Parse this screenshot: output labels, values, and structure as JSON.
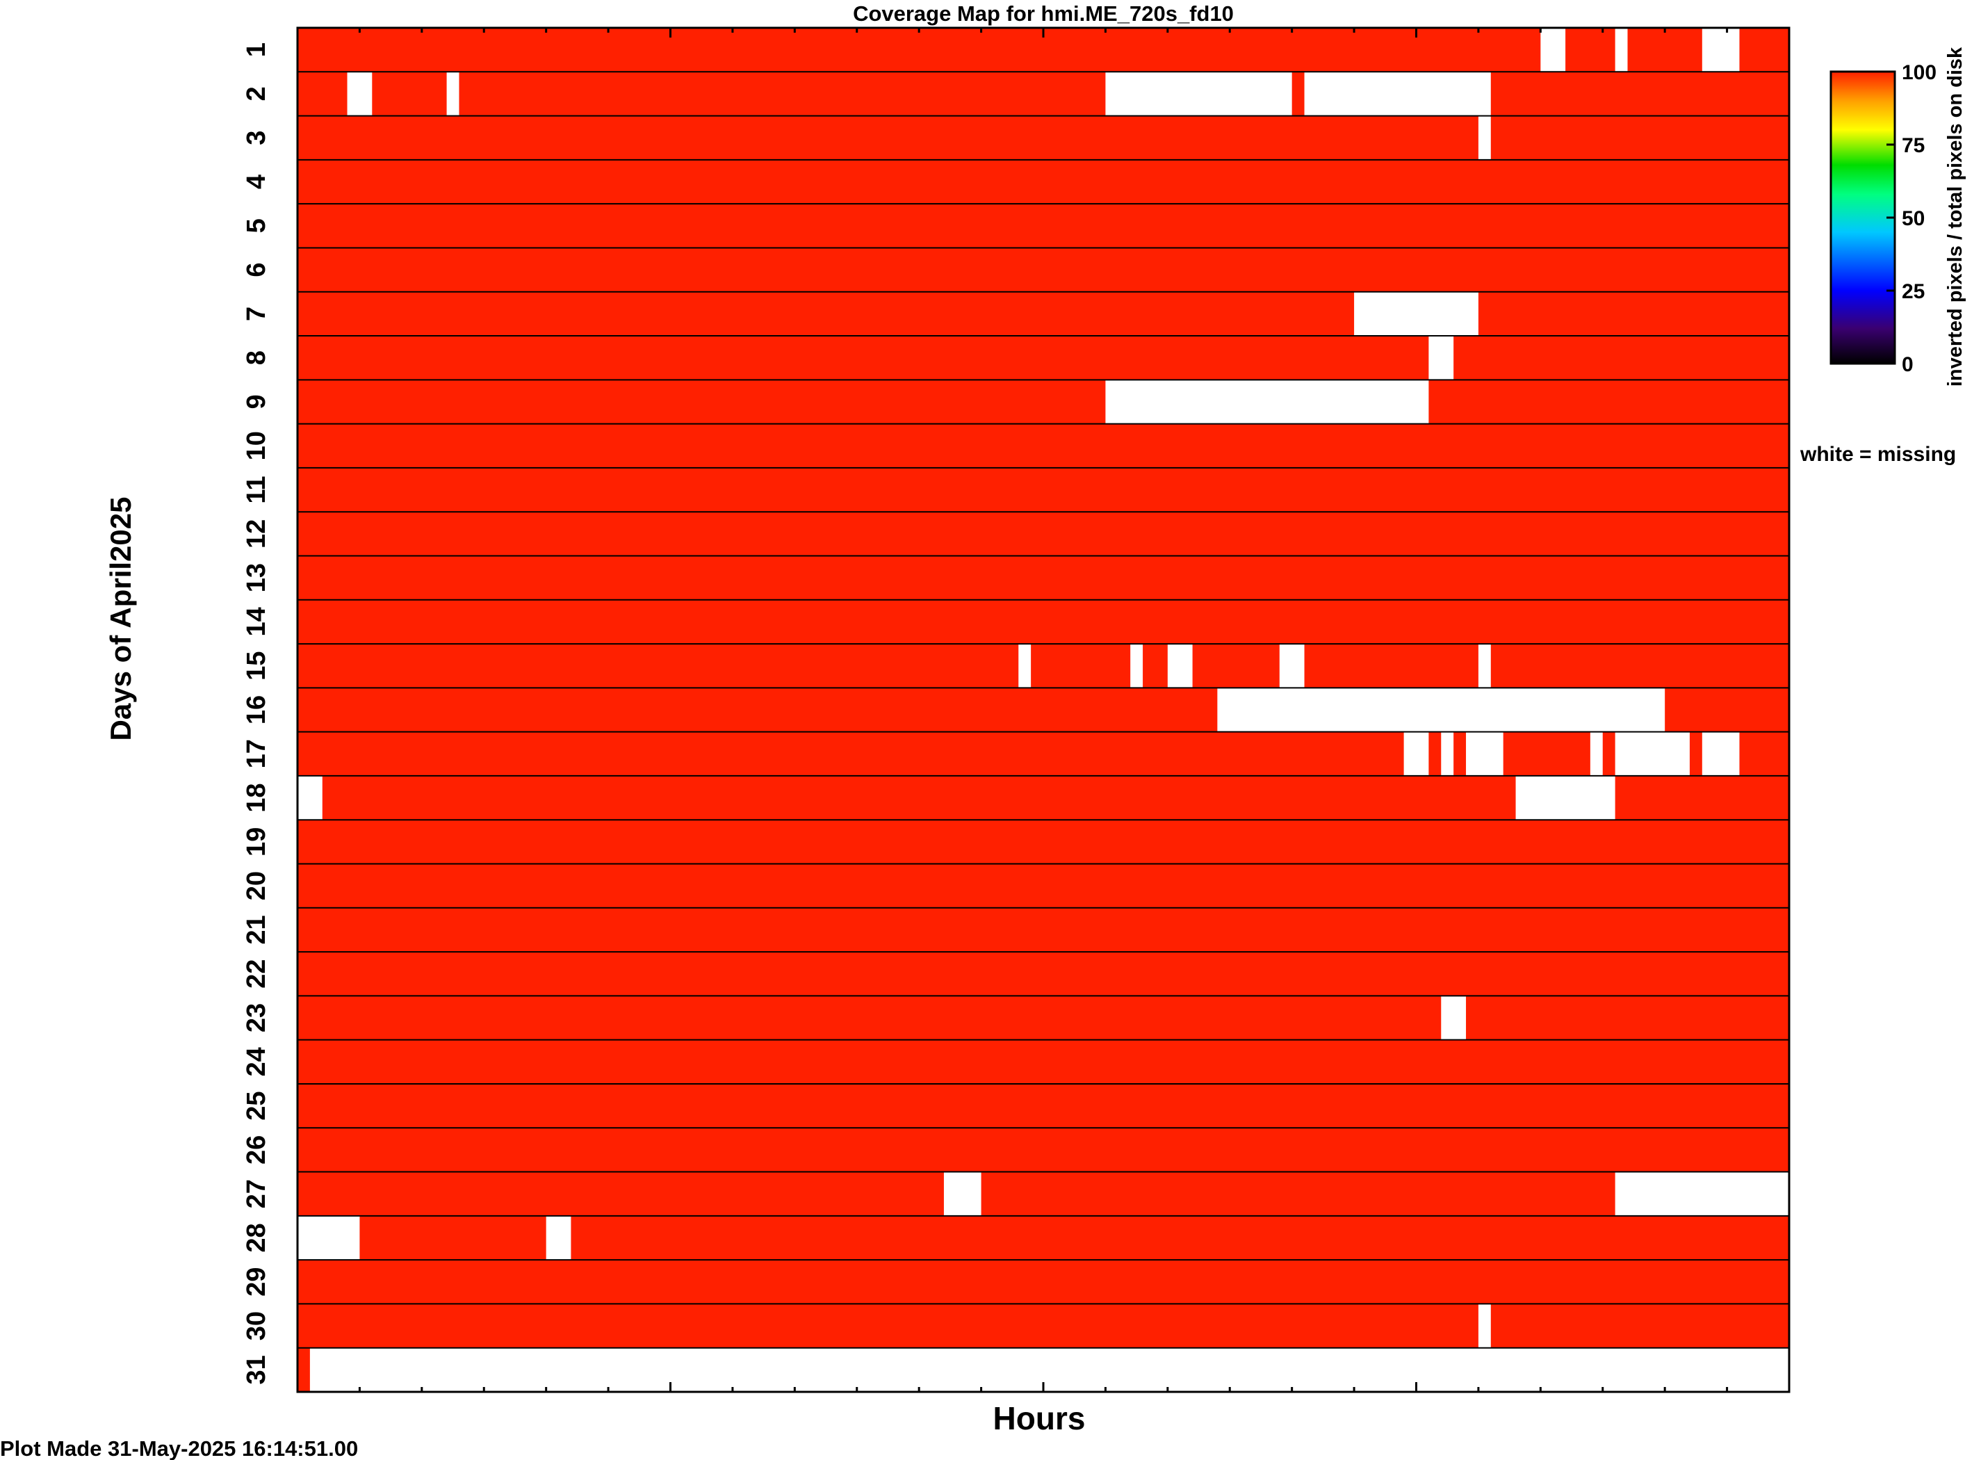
{
  "chart_data": {
    "type": "heatmap",
    "title": "Coverage Map for hmi.ME_720s_fd10",
    "xlabel": "Hours",
    "ylabel": "Days of April2025",
    "xlim": [
      0,
      24
    ],
    "days": 31,
    "day_labels": [
      "1",
      "2",
      "3",
      "4",
      "5",
      "6",
      "7",
      "8",
      "9",
      "10",
      "11",
      "12",
      "13",
      "14",
      "15",
      "16",
      "17",
      "18",
      "19",
      "20",
      "21",
      "22",
      "23",
      "24",
      "25",
      "26",
      "27",
      "28",
      "29",
      "30",
      "31"
    ],
    "colorbar": {
      "label": "inverted pixels / total pixels on disk",
      "ticks": [
        "0",
        "25",
        "50",
        "75",
        "100"
      ],
      "range": [
        0,
        100
      ],
      "colors": [
        "#000000",
        "#3a0070",
        "#0000ff",
        "#00c8ff",
        "#00ff80",
        "#00dd00",
        "#ffff00",
        "#ffa000",
        "#ff2000"
      ],
      "note": "white = missing"
    },
    "value_color": "#ff2000",
    "missing_color": "#ffffff",
    "coverage_value": 100,
    "missing_hours": [
      {
        "day": 1,
        "spans": [
          [
            20.0,
            20.4
          ],
          [
            21.2,
            21.4
          ],
          [
            22.6,
            23.2
          ]
        ]
      },
      {
        "day": 2,
        "spans": [
          [
            0.8,
            1.2
          ],
          [
            2.4,
            2.6
          ],
          [
            13.0,
            16.0
          ],
          [
            16.2,
            19.2
          ]
        ]
      },
      {
        "day": 3,
        "spans": [
          [
            19.0,
            19.2
          ]
        ]
      },
      {
        "day": 7,
        "spans": [
          [
            17.0,
            19.0
          ]
        ]
      },
      {
        "day": 8,
        "spans": [
          [
            18.2,
            18.6
          ]
        ]
      },
      {
        "day": 9,
        "spans": [
          [
            13.0,
            18.2
          ]
        ]
      },
      {
        "day": 15,
        "spans": [
          [
            11.6,
            11.8
          ],
          [
            13.4,
            13.6
          ],
          [
            14.0,
            14.4
          ],
          [
            15.8,
            16.2
          ],
          [
            19.0,
            19.2
          ]
        ]
      },
      {
        "day": 16,
        "spans": [
          [
            14.8,
            22.0
          ]
        ]
      },
      {
        "day": 17,
        "spans": [
          [
            17.8,
            18.2
          ],
          [
            18.4,
            18.6
          ],
          [
            18.8,
            19.4
          ],
          [
            20.8,
            21.0
          ],
          [
            21.2,
            22.4
          ],
          [
            22.6,
            23.2
          ]
        ]
      },
      {
        "day": 18,
        "spans": [
          [
            0.0,
            0.4
          ],
          [
            19.6,
            21.2
          ]
        ]
      },
      {
        "day": 23,
        "spans": [
          [
            18.4,
            18.8
          ]
        ]
      },
      {
        "day": 27,
        "spans": [
          [
            10.4,
            11.0
          ],
          [
            21.2,
            24.0
          ]
        ]
      },
      {
        "day": 28,
        "spans": [
          [
            0.0,
            1.0
          ],
          [
            4.0,
            4.4
          ]
        ]
      },
      {
        "day": 30,
        "spans": [
          [
            19.0,
            19.2
          ]
        ]
      },
      {
        "day": 31,
        "spans": [
          [
            0.2,
            24.0
          ]
        ]
      }
    ]
  },
  "footer": {
    "plot_made": "Plot Made 31-May-2025 16:14:51.00"
  }
}
